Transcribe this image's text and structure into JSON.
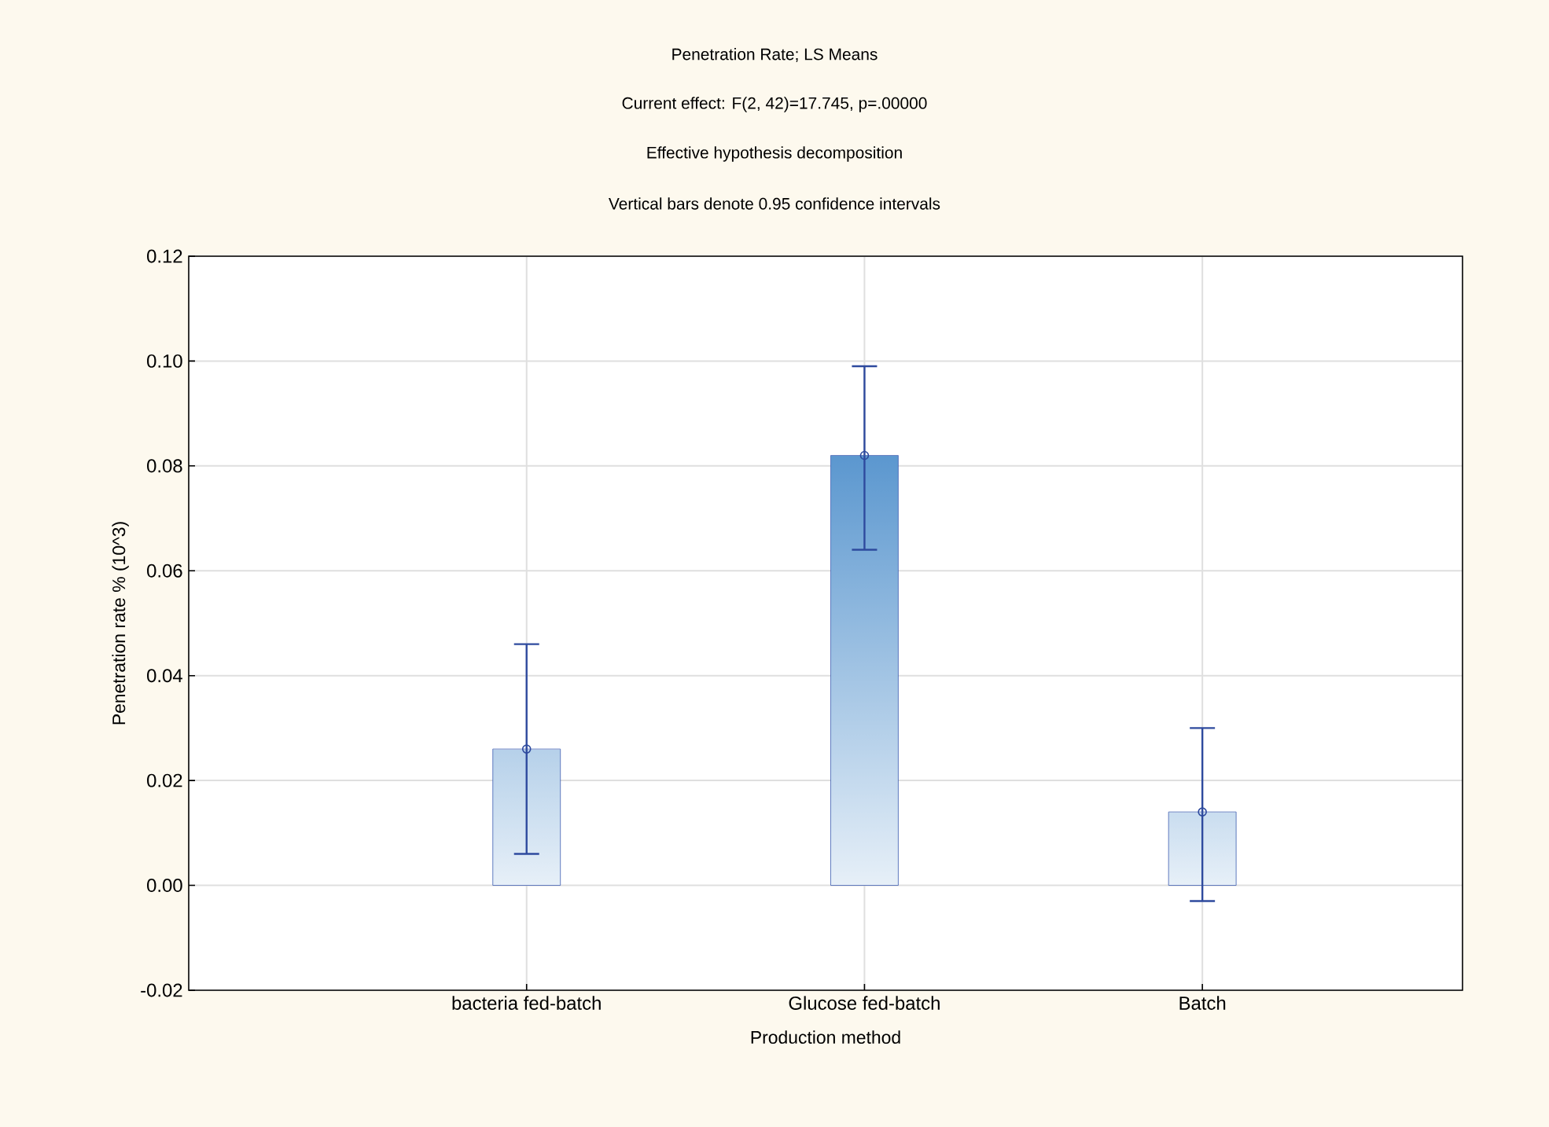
{
  "chart_data": {
    "type": "bar",
    "title": "Penetration Rate; LS Means",
    "subtitle": "Current effect: F(2, 42)=17.745, p=.00000",
    "annotations": [
      "Effective hypothesis decomposition",
      "Vertical bars denote 0.95 confidence intervals"
    ],
    "xlabel": "Production method",
    "ylabel": "Penetration rate % (10^3)",
    "categories": [
      "bacteria fed-batch",
      "Glucose fed-batch",
      "Batch"
    ],
    "series": [
      {
        "color": "#5b97cf",
        "values": [
          0.026,
          0.082,
          0.014
        ]
      },
      {
        "type": "scatter",
        "color": "#2e4a9e",
        "x": [
          "bacteria fed-batch",
          "Glucose fed-batch",
          "Batch"
        ],
        "values": [
          0.026,
          0.082,
          0.014
        ],
        "errors": [
          [
            0.006,
            0.046
          ],
          [
            0.064,
            0.099
          ],
          [
            -0.003,
            0.03
          ]
        ]
      }
    ],
    "ylim": [
      -0.02,
      0.12
    ],
    "yticks": [
      {
        "value": -0.02,
        "label": "-0.02"
      },
      {
        "value": 0,
        "label": "0.00"
      },
      {
        "value": 0.02,
        "label": "0.02"
      },
      {
        "value": 0.04,
        "label": "0.04"
      },
      {
        "value": 0.06,
        "label": "0.06"
      },
      {
        "value": 0.08,
        "label": "0.08"
      },
      {
        "value": 0.1,
        "label": "0.10"
      },
      {
        "value": 0.12,
        "label": "0.12"
      }
    ],
    "grid": true,
    "marker": "circle"
  }
}
